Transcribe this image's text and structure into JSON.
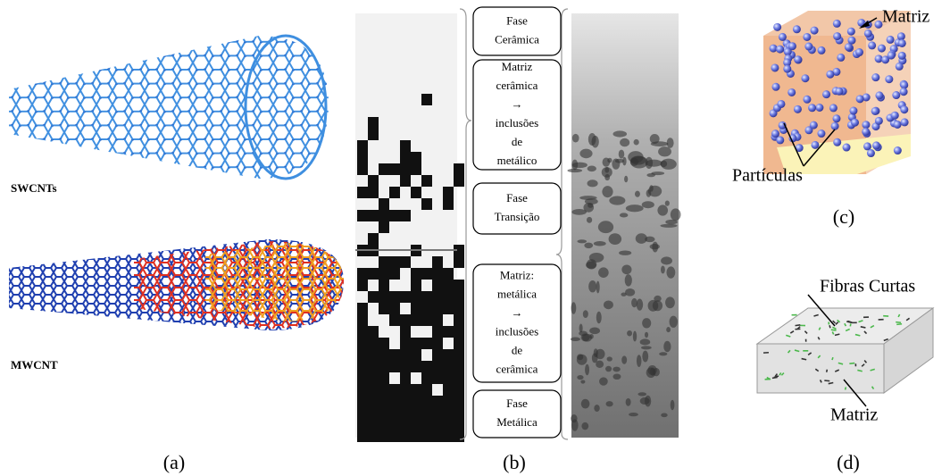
{
  "panel_a": {
    "labels": [
      "SWCNTs",
      "MWCNT"
    ],
    "caption": "(a)"
  },
  "panel_b": {
    "boxes": [
      [
        "Fase",
        "Cerâmica"
      ],
      [
        "Matriz",
        "cerâmica",
        "→",
        "inclusões",
        "de",
        "metálico"
      ],
      [
        "Fase",
        "Transição"
      ],
      [
        "Matriz:",
        "metálica",
        "→",
        "inclusões",
        "de",
        "cerâmica"
      ],
      [
        "Fase",
        "Metálica"
      ]
    ],
    "caption": "(b)"
  },
  "panel_c": {
    "matrix_label": "Matriz",
    "particles_label": "Partículas",
    "caption": "(c)"
  },
  "panel_d": {
    "fibers_label": "Fibras Curtas",
    "matrix_label": "Matriz",
    "caption": "(d)"
  }
}
